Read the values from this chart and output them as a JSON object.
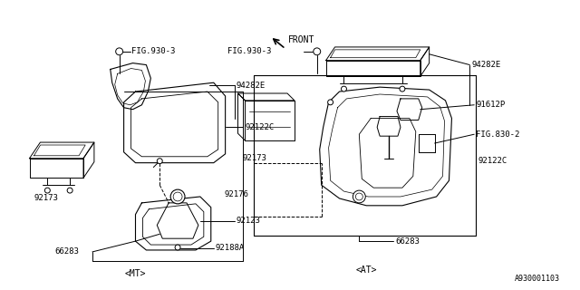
{
  "bg_color": "#ffffff",
  "line_color": "#000000",
  "text_color": "#000000",
  "figsize": [
    6.4,
    3.2
  ],
  "dpi": 100,
  "diagram_label_mt": "<MT>",
  "diagram_label_at": "<AT>",
  "bottom_ref": "A930001103"
}
